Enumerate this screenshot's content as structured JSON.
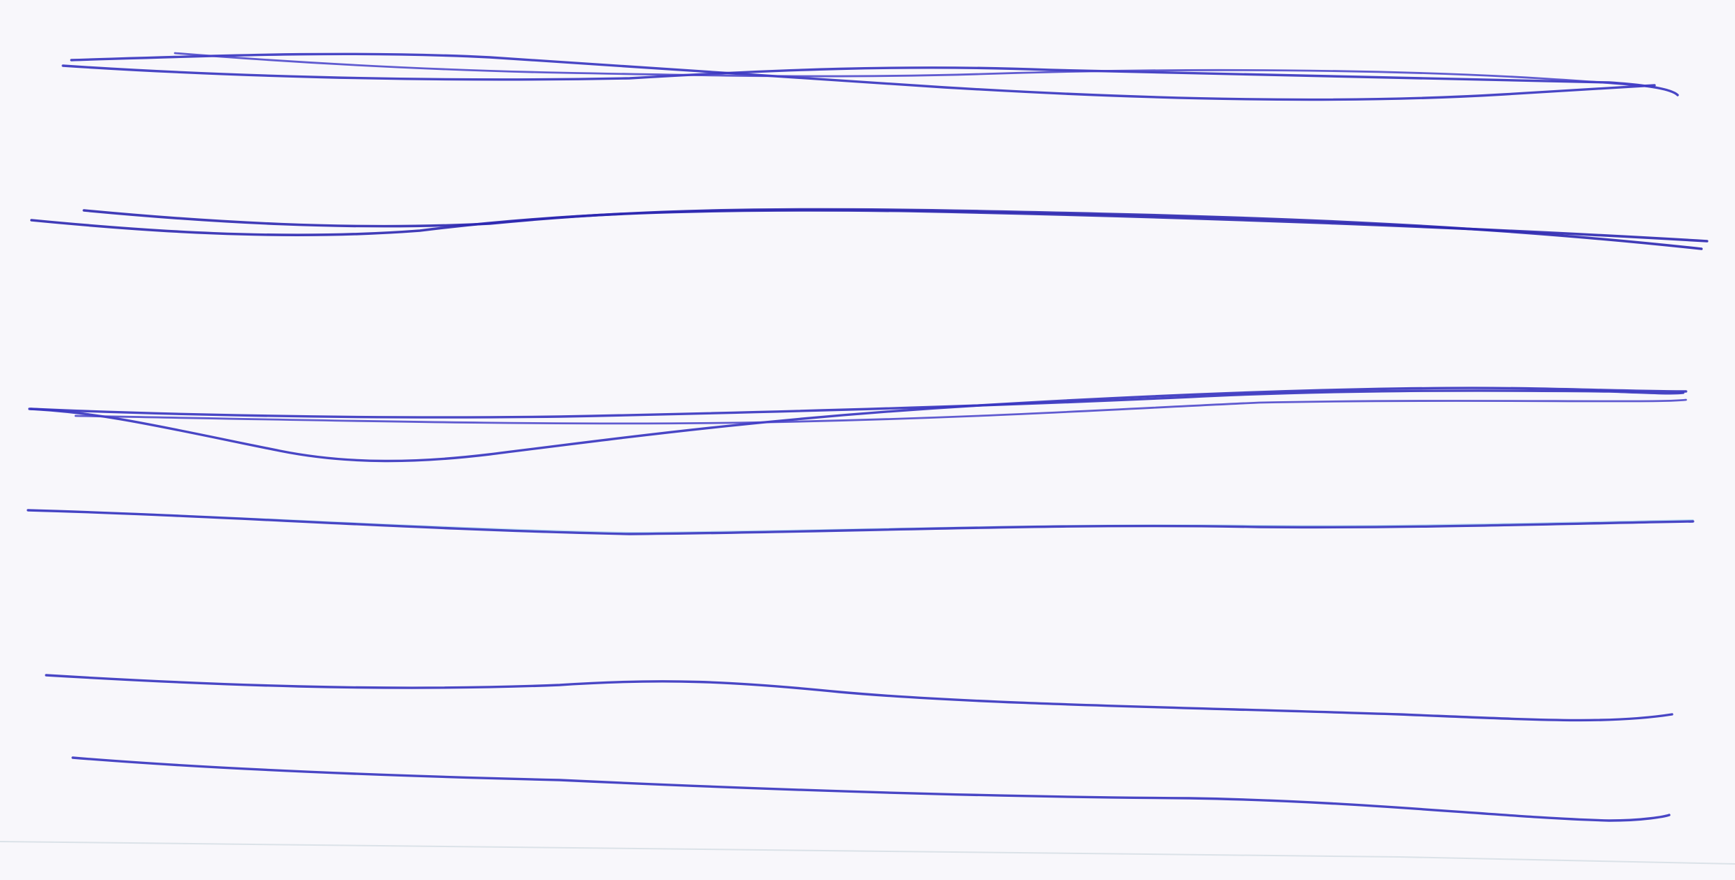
{
  "scene": {
    "subject": "hand-drawn-lines",
    "medium": "ballpoint-pen",
    "paper_color": "#f8f7fb",
    "ink_color": "#3a36c0",
    "stroke_groups": [
      {
        "id": "group-1",
        "stroke_count": 3
      },
      {
        "id": "group-2",
        "stroke_count": 2
      },
      {
        "id": "group-3",
        "stroke_count": 3
      },
      {
        "id": "group-4",
        "stroke_count": 1
      },
      {
        "id": "group-5",
        "stroke_count": 1
      },
      {
        "id": "group-6",
        "stroke_count": 1
      }
    ]
  }
}
